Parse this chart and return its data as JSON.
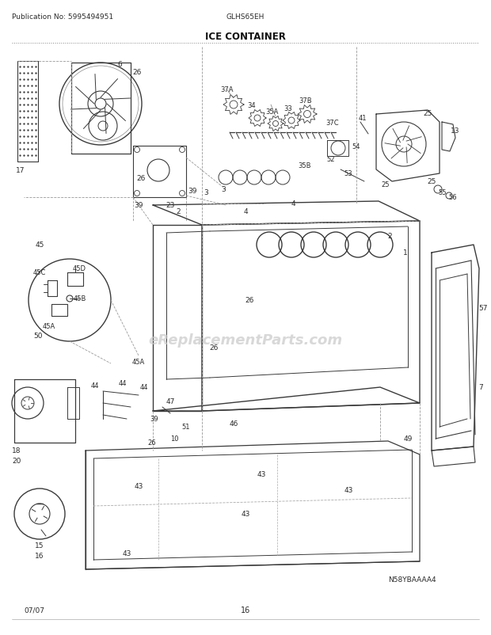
{
  "title": "ICE CONTAINER",
  "pub_no": "Publication No: 5995494951",
  "model": "GLHS65EH",
  "page": "16",
  "date": "07/07",
  "diagram_id": "N58YBAAAA4",
  "bg_color": "#ffffff",
  "line_color": "#3a3a3a",
  "text_color": "#2a2a2a",
  "watermark": "eReplacementParts.com",
  "figsize": [
    6.2,
    8.03
  ],
  "dpi": 100
}
